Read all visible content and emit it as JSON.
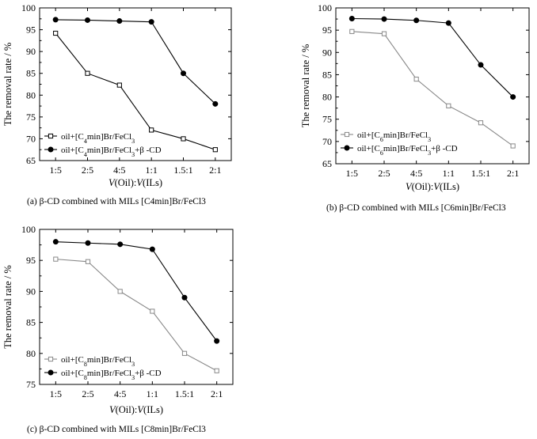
{
  "chart_data": [
    {
      "type": "line",
      "categories": [
        "1:5",
        "2:5",
        "4:5",
        "1:1",
        "1.5:1",
        "2:1"
      ],
      "xlabel_var1": "V",
      "xlabel_mid": "(Oil):",
      "xlabel_var2": "V",
      "xlabel_end": "(ILs)",
      "ylabel": "The removal rate / %",
      "ylim": [
        65,
        100
      ],
      "yticks": [
        "65",
        "70",
        "75",
        "80",
        "85",
        "90",
        "95",
        "100"
      ],
      "legend_position": "bottom-left",
      "grid": false,
      "series": [
        {
          "values": [
            94.2,
            85.0,
            82.3,
            72.0,
            70.0,
            67.5
          ],
          "marker": "open-square",
          "color": "#000000",
          "legend_before": "oil+[C",
          "legend_sub1": "4",
          "legend_mid": "min]Br/FeCl",
          "legend_sub2": "3",
          "legend_after": ""
        },
        {
          "values": [
            97.3,
            97.2,
            97.0,
            96.8,
            85.0,
            78.0
          ],
          "marker": "filled-circle",
          "color": "#000000",
          "legend_before": "oil+[C",
          "legend_sub1": "4",
          "legend_mid": "min]Br/FeCl",
          "legend_sub2": "3",
          "legend_after": "+β -CD"
        }
      ],
      "caption": "(a) β-CD combined with MILs [C4min]Br/FeCl3"
    },
    {
      "type": "line",
      "categories": [
        "1:5",
        "2:5",
        "4:5",
        "1:1",
        "1.5:1",
        "2:1"
      ],
      "xlabel_var1": "V",
      "xlabel_mid": "(Oil):",
      "xlabel_var2": "V",
      "xlabel_end": "(ILs)",
      "ylabel": "The removal rate / %",
      "ylim": [
        65,
        100
      ],
      "yticks": [
        "65",
        "70",
        "75",
        "80",
        "85",
        "90",
        "95",
        "100"
      ],
      "legend_position": "bottom-left",
      "grid": false,
      "series": [
        {
          "values": [
            94.7,
            94.2,
            84.0,
            78.0,
            74.2,
            69.0
          ],
          "marker": "open-square",
          "color": "#888888",
          "legend_before": "oil+[C",
          "legend_sub1": "6",
          "legend_mid": "min]Br/FeCl",
          "legend_sub2": "3",
          "legend_after": ""
        },
        {
          "values": [
            97.6,
            97.5,
            97.2,
            96.6,
            87.2,
            80.0
          ],
          "marker": "filled-circle",
          "color": "#000000",
          "legend_before": "oil+[C",
          "legend_sub1": "6",
          "legend_mid": "min]Br/FeCl",
          "legend_sub2": "3",
          "legend_after": "+β -CD"
        }
      ],
      "caption": "(b) β-CD combined with MILs [C6min]Br/FeCl3"
    },
    {
      "type": "line",
      "categories": [
        "1:5",
        "2:5",
        "4:5",
        "1:1",
        "1.5:1",
        "2:1"
      ],
      "xlabel_var1": "V",
      "xlabel_mid": "(Oil):",
      "xlabel_var2": "V",
      "xlabel_end": "(ILs)",
      "ylabel": "The removal rate / %",
      "ylim": [
        75,
        100
      ],
      "yticks": [
        "75",
        "80",
        "85",
        "90",
        "95",
        "100"
      ],
      "legend_position": "bottom-left",
      "grid": false,
      "series": [
        {
          "values": [
            95.2,
            94.8,
            90.0,
            86.8,
            80.0,
            77.2
          ],
          "marker": "open-square",
          "color": "#888888",
          "legend_before": "oil+[C",
          "legend_sub1": "8",
          "legend_mid": "min]Br/FeCl",
          "legend_sub2": "3",
          "legend_after": ""
        },
        {
          "values": [
            98.0,
            97.8,
            97.6,
            96.8,
            89.0,
            82.0
          ],
          "marker": "filled-circle",
          "color": "#000000",
          "legend_before": "oil+[C",
          "legend_sub1": "8",
          "legend_mid": "min]Br/FeCl",
          "legend_sub2": "3",
          "legend_after": "+β -CD"
        }
      ],
      "caption": "(c) β-CD combined with MILs [C8min]Br/FeCl3"
    }
  ]
}
